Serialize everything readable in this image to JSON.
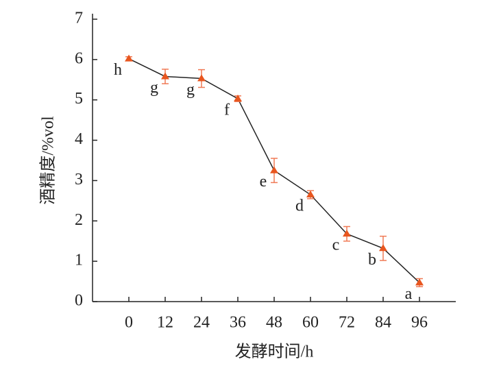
{
  "chart_data": {
    "type": "line",
    "x_label": "发酵时间/h",
    "y_label": "酒精度/%vol",
    "x": [
      0,
      12,
      24,
      36,
      48,
      60,
      72,
      84,
      96
    ],
    "values": [
      6.02,
      5.58,
      5.53,
      5.03,
      3.25,
      2.65,
      1.68,
      1.32,
      0.47
    ],
    "errors": [
      0.05,
      0.18,
      0.22,
      0.07,
      0.3,
      0.1,
      0.18,
      0.3,
      0.1
    ],
    "annotations": [
      "h",
      "g",
      "g",
      "f",
      "e",
      "d",
      "c",
      "b",
      "a"
    ],
    "line_color": "#222222",
    "marker_color": "#e8561f",
    "error_color": "#f07a55",
    "xlim": [
      -12,
      108
    ],
    "xticks": [
      0,
      12,
      24,
      36,
      48,
      60,
      72,
      84,
      96
    ],
    "ylim": [
      0,
      7
    ],
    "yticks": [
      0,
      1,
      2,
      3,
      4,
      5,
      6,
      7
    ]
  }
}
